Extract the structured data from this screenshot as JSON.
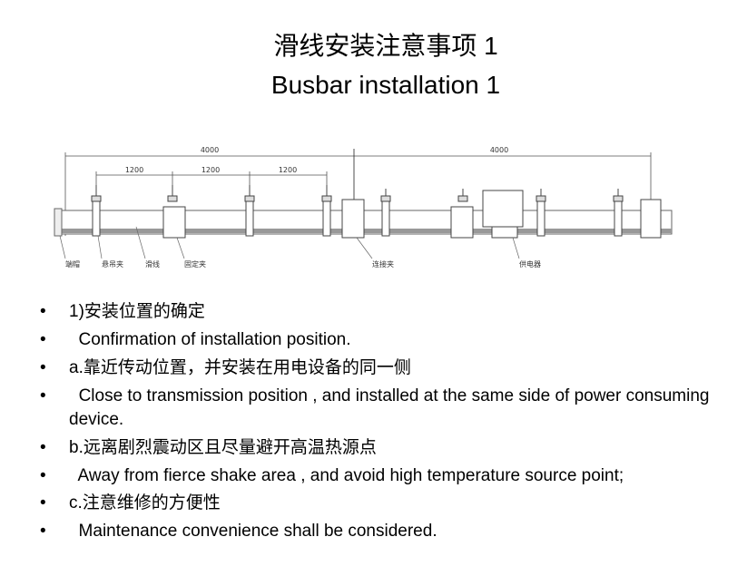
{
  "title": {
    "zh": "滑线安装注意事项 1",
    "en": "Busbar installation 1"
  },
  "diagram": {
    "dimensions": {
      "total_left": "4000",
      "total_right": "4000",
      "spacing_1": "1200",
      "spacing_2": "1200",
      "spacing_3": "1200"
    },
    "labels": {
      "end_cap": "端帽",
      "hanger_clamp": "悬吊夹",
      "busbar": "滑线",
      "fixed_clamp": "固定夹",
      "joint_clamp": "连接夹",
      "power_feeder": "供电器"
    }
  },
  "bullets": [
    {
      "marker": "•",
      "text": "1)安装位置的确定"
    },
    {
      "marker": "•",
      "text": "  Confirmation of installation position."
    },
    {
      "marker": "•",
      "text": "a.靠近传动位置，并安装在用电设备的同一侧"
    },
    {
      "marker": "•",
      "text": "  Close to transmission position , and installed at the same side of power consuming device."
    },
    {
      "marker": "•",
      "text": "b.远离剧烈震动区且尽量避开高温热源点"
    },
    {
      "marker": "•",
      "text": "  Away from fierce shake area , and avoid high temperature source point;"
    },
    {
      "marker": "•",
      "text": "c.注意维修的方便性"
    },
    {
      "marker": "•",
      "text": "  Maintenance convenience shall be considered."
    }
  ]
}
